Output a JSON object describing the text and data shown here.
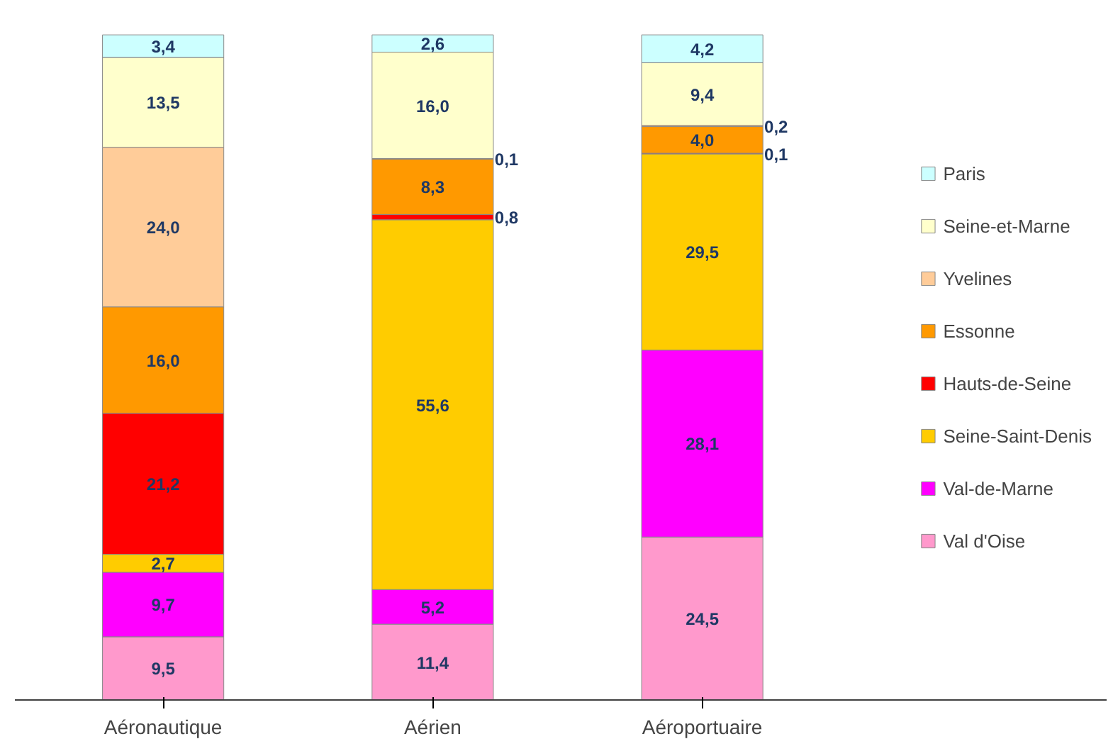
{
  "chart_data": {
    "type": "bar",
    "stacked": true,
    "categories": [
      "Aéronautique",
      "Aérien",
      "Aéroportuaire"
    ],
    "series": [
      {
        "name": "Val d'Oise",
        "color": "#ff99cc",
        "values": [
          9.5,
          11.4,
          24.5
        ],
        "value_labels": [
          "9,5",
          "11,4",
          "24,5"
        ]
      },
      {
        "name": "Val-de-Marne",
        "color": "#ff00ff",
        "values": [
          9.7,
          5.2,
          28.1
        ],
        "value_labels": [
          "9,7",
          "5,2",
          "28,1"
        ]
      },
      {
        "name": "Seine-Saint-Denis",
        "color": "#ffcc00",
        "values": [
          2.7,
          55.6,
          29.5
        ],
        "value_labels": [
          "2,7",
          "55,6",
          "29,5"
        ]
      },
      {
        "name": "Hauts-de-Seine",
        "color": "#ff0000",
        "values": [
          21.2,
          0.8,
          0.1
        ],
        "value_labels": [
          "21,2",
          "0,8",
          "0,1"
        ]
      },
      {
        "name": "Essonne",
        "color": "#ff9900",
        "values": [
          16.0,
          8.3,
          4.0
        ],
        "value_labels": [
          "16,0",
          "8,3",
          "4,0"
        ]
      },
      {
        "name": "Yvelines",
        "color": "#ffcc99",
        "values": [
          24.0,
          0.1,
          0.2
        ],
        "value_labels": [
          "24,0",
          "0,1",
          "0,2"
        ]
      },
      {
        "name": "Seine-et-Marne",
        "color": "#ffffcc",
        "values": [
          13.5,
          16.0,
          9.4
        ],
        "value_labels": [
          "13,5",
          "16,0",
          "9,4"
        ]
      },
      {
        "name": "Paris",
        "color": "#ccffff",
        "values": [
          3.4,
          2.6,
          4.2
        ],
        "value_labels": [
          "3,4",
          "2,6",
          "4,2"
        ]
      }
    ],
    "legend": "right",
    "grid": false
  }
}
